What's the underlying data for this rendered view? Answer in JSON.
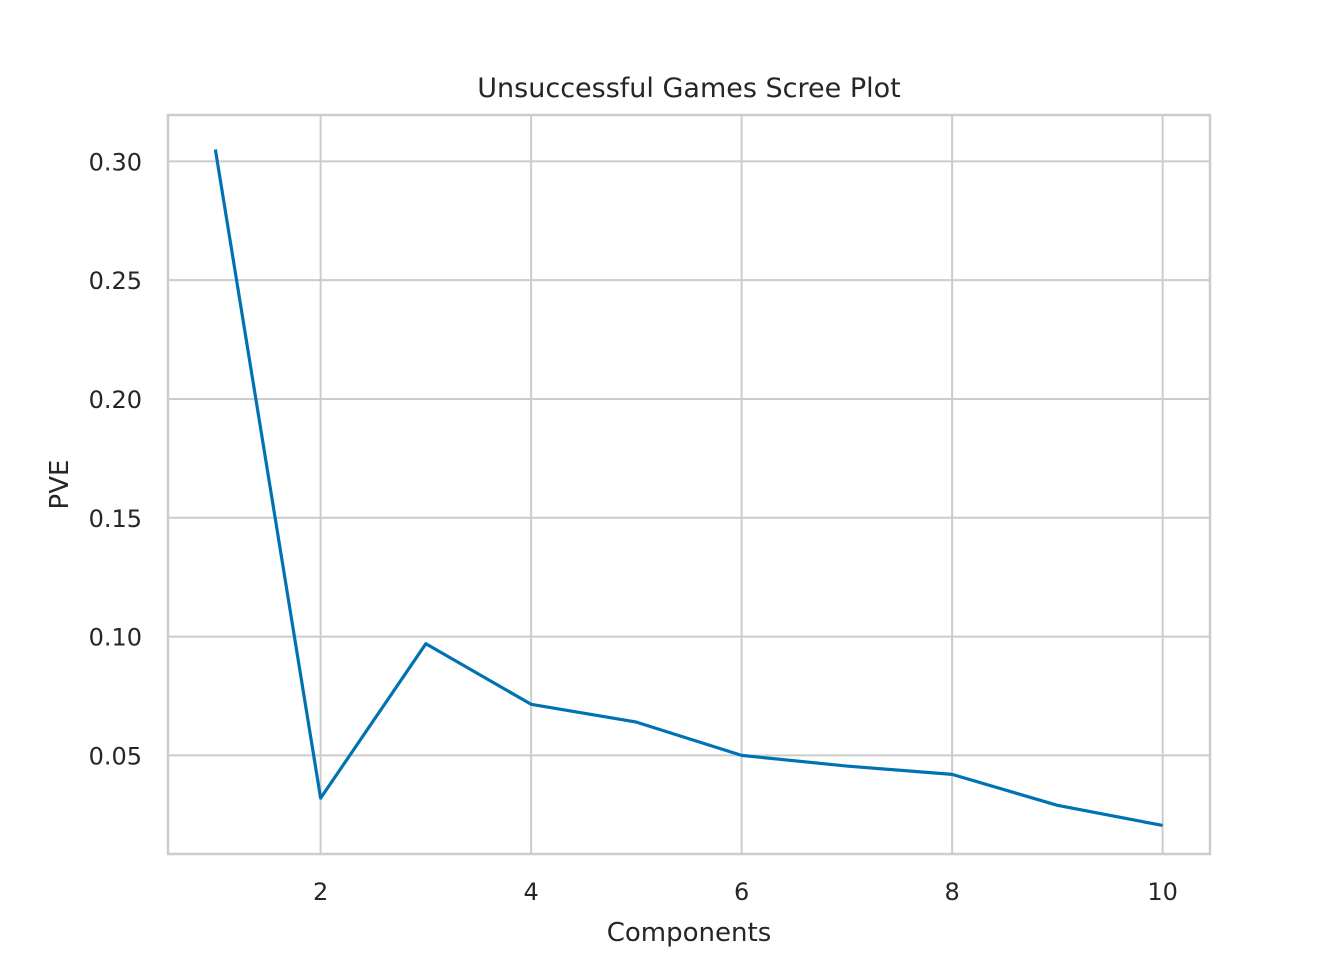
{
  "chart_data": {
    "type": "line",
    "title": "Unsuccessful Games Scree Plot",
    "xlabel": "Components",
    "ylabel": "PVE",
    "xlim": [
      0.55,
      10.45
    ],
    "ylim": [
      0.0085,
      0.3195
    ],
    "xticks": [
      2,
      4,
      6,
      8,
      10
    ],
    "xtick_labels": [
      "2",
      "4",
      "6",
      "8",
      "10"
    ],
    "yticks": [
      0.05,
      0.1,
      0.15,
      0.2,
      0.25,
      0.3
    ],
    "ytick_labels": [
      "0.05",
      "0.10",
      "0.15",
      "0.20",
      "0.25",
      "0.30"
    ],
    "grid": true,
    "series": [
      {
        "color": "#0072b2",
        "x": [
          1,
          2,
          3,
          4,
          5,
          6,
          7,
          8,
          9,
          10
        ],
        "y": [
          0.305,
          0.032,
          0.097,
          0.0715,
          0.064,
          0.05,
          0.0455,
          0.042,
          0.029,
          0.0205
        ]
      }
    ]
  }
}
